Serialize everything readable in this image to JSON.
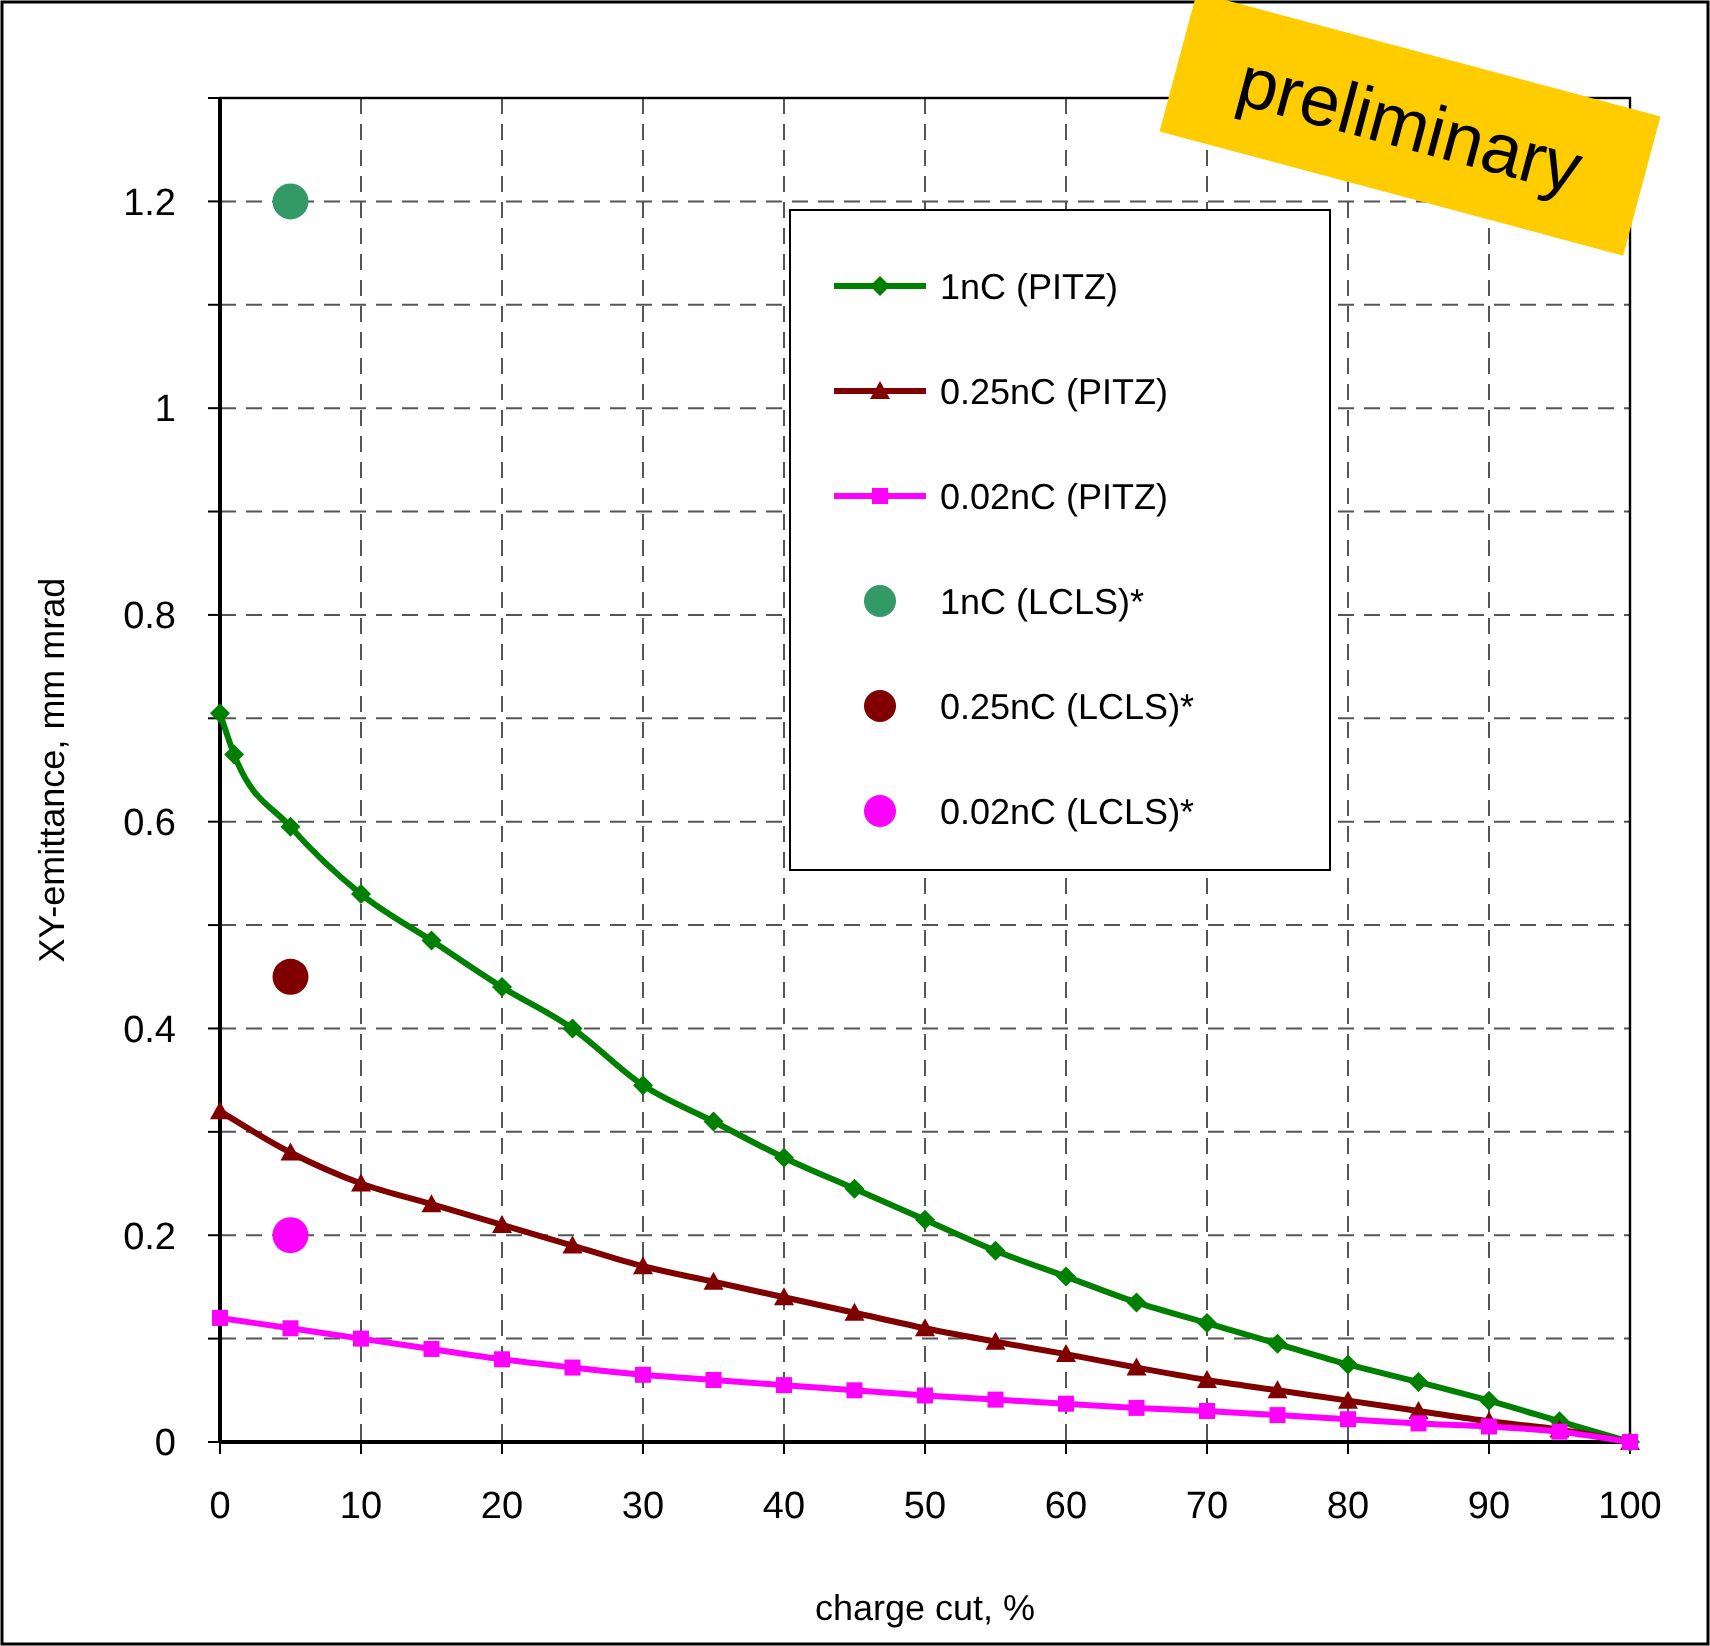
{
  "chart_data": {
    "type": "line",
    "xlabel": "charge cut, %",
    "ylabel": "XY-emittance, mm mrad",
    "xlim": [
      0,
      100
    ],
    "xticks": [
      0,
      10,
      20,
      30,
      40,
      50,
      60,
      70,
      80,
      90,
      100
    ],
    "ylim": [
      0,
      1.3
    ],
    "yticks": [
      0,
      {
        "value": 0.1,
        "label": null
      },
      0.2,
      {
        "value": 0.3,
        "label": null
      },
      0.4,
      {
        "value": 0.5,
        "label": null
      },
      0.6,
      {
        "value": 0.7,
        "label": null
      },
      0.8,
      {
        "value": 0.9,
        "label": null
      },
      1,
      {
        "value": 1.1,
        "label": null
      },
      1.2,
      {
        "value": 1.3,
        "label": null
      }
    ],
    "grid": true,
    "legend": "top right",
    "annotations": [
      "preliminary"
    ],
    "series": [
      {
        "name": "1nC (PITZ)",
        "marker": "diamond",
        "color": "#008000",
        "x": [
          0,
          1,
          5,
          10,
          15,
          20,
          25,
          30,
          35,
          40,
          45,
          50,
          55,
          60,
          65,
          70,
          75,
          80,
          85,
          90,
          95,
          100
        ],
        "values": [
          0.705,
          0.665,
          0.595,
          0.53,
          0.485,
          0.44,
          0.4,
          0.345,
          0.31,
          0.275,
          0.245,
          0.215,
          0.185,
          0.16,
          0.135,
          0.115,
          0.095,
          0.075,
          0.058,
          0.04,
          0.02,
          0
        ]
      },
      {
        "name": "0.25nC (PITZ)",
        "marker": "triangle",
        "color": "#800000",
        "x": [
          0,
          5,
          10,
          15,
          20,
          25,
          30,
          35,
          40,
          45,
          50,
          55,
          60,
          65,
          70,
          75,
          80,
          85,
          90,
          95,
          100
        ],
        "values": [
          0.32,
          0.28,
          0.25,
          0.23,
          0.21,
          0.19,
          0.17,
          0.155,
          0.14,
          0.125,
          0.11,
          0.097,
          0.085,
          0.072,
          0.06,
          0.05,
          0.04,
          0.03,
          0.02,
          0.012,
          0
        ]
      },
      {
        "name": "0.02nC (PITZ)",
        "marker": "square",
        "color": "#ff00ff",
        "x": [
          0,
          5,
          10,
          15,
          20,
          25,
          30,
          35,
          40,
          45,
          50,
          55,
          60,
          65,
          70,
          75,
          80,
          85,
          90,
          95,
          100
        ],
        "values": [
          0.12,
          0.11,
          0.1,
          0.09,
          0.08,
          0.072,
          0.065,
          0.06,
          0.055,
          0.05,
          0.045,
          0.041,
          0.037,
          0.033,
          0.03,
          0.026,
          0.022,
          0.018,
          0.015,
          0.01,
          0
        ]
      },
      {
        "name": "1nC (LCLS)*",
        "type": "scatter",
        "marker": "circle",
        "color": "#339966",
        "x": [
          5
        ],
        "values": [
          1.2
        ]
      },
      {
        "name": "0.25nC (LCLS)*",
        "type": "scatter",
        "marker": "circle",
        "color": "#800000",
        "x": [
          5
        ],
        "values": [
          0.45
        ]
      },
      {
        "name": "0.02nC (LCLS)*",
        "type": "scatter",
        "marker": "circle",
        "color": "#ff00ff",
        "x": [
          5
        ],
        "values": [
          0.2
        ]
      }
    ]
  }
}
